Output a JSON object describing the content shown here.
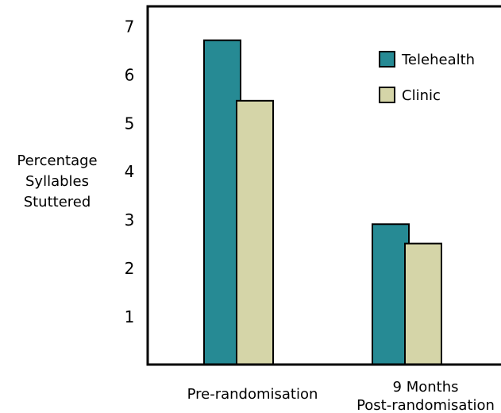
{
  "chart_data": {
    "type": "bar",
    "title": "",
    "ylabel": [
      "Percentage",
      "Syllables",
      "Stuttered"
    ],
    "xlabel": "",
    "categories": [
      [
        "Pre-randomisation"
      ],
      [
        "9 Months",
        "Post-randomisation"
      ]
    ],
    "yticks": [
      1,
      2,
      3,
      4,
      5,
      6,
      7
    ],
    "ylim": [
      0,
      7.4
    ],
    "series": [
      {
        "name": "Telehealth",
        "color": "#268a94",
        "values": [
          6.7,
          2.9
        ]
      },
      {
        "name": "Clinic",
        "color": "#d5d5a8",
        "values": [
          5.45,
          2.5
        ]
      }
    ],
    "legend_position": "top-right",
    "grid": false
  }
}
